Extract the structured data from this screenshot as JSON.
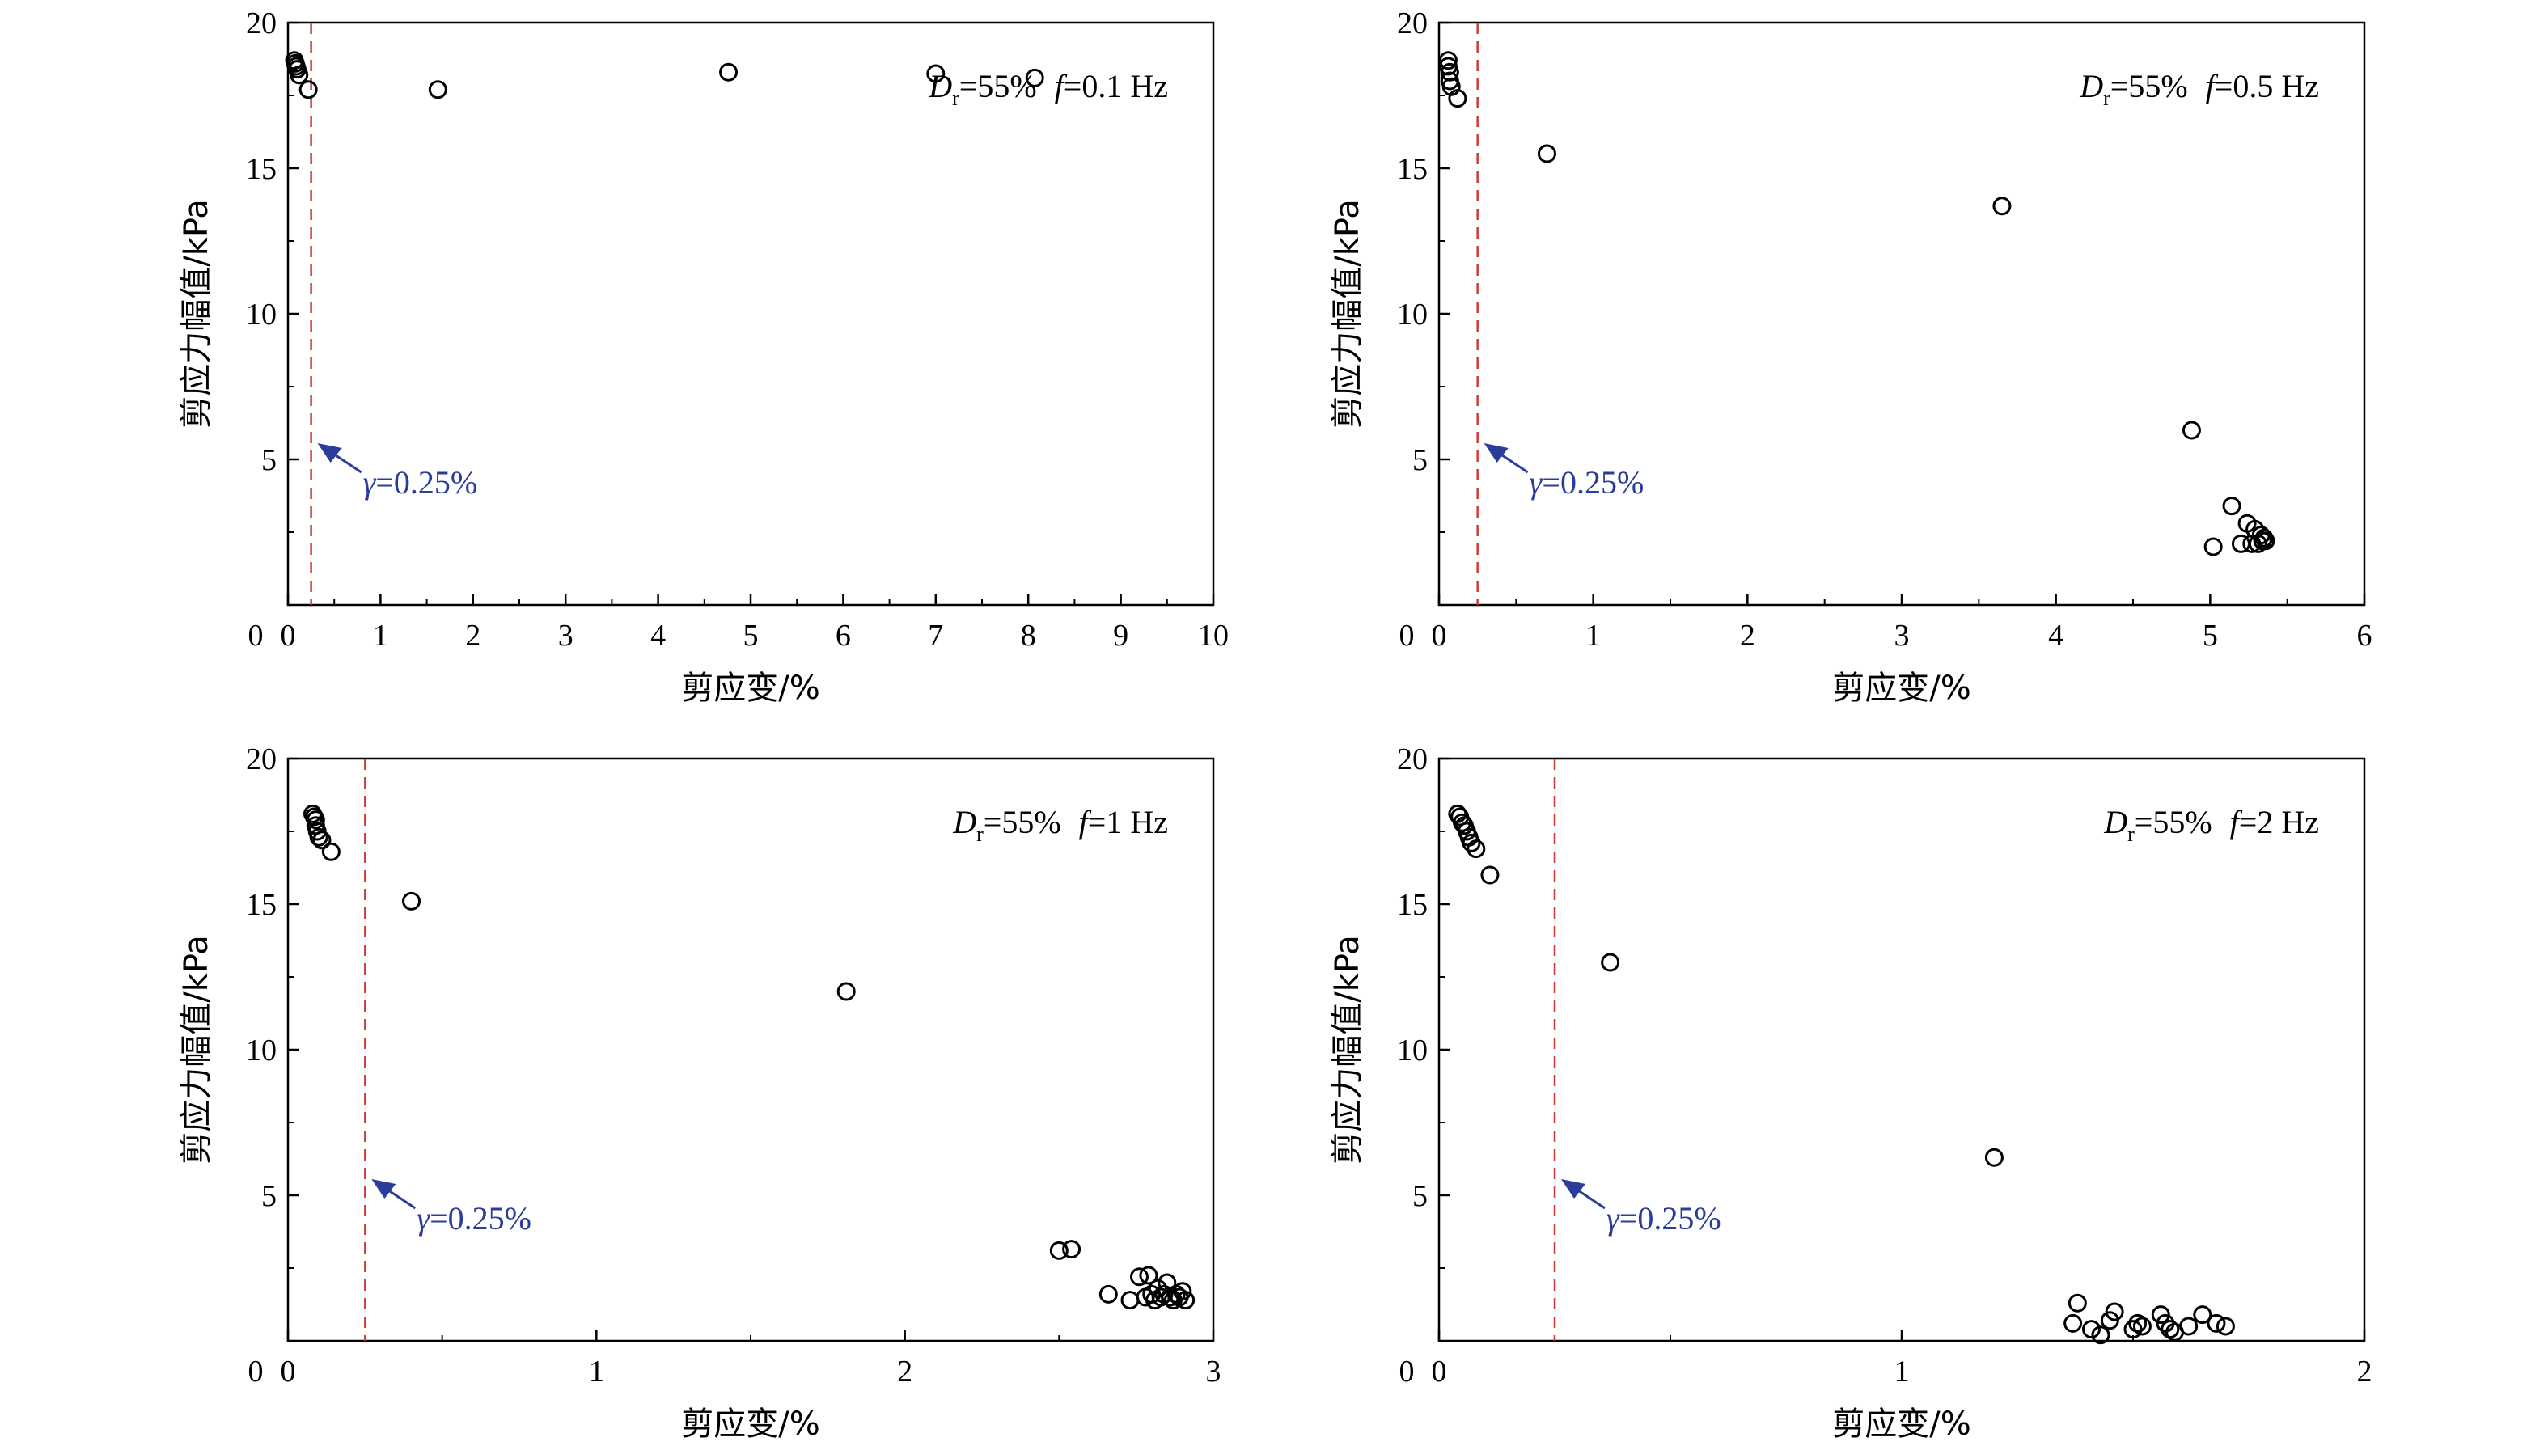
{
  "chart_data": [
    {
      "type": "scatter",
      "xlabel": "剪应变/%",
      "ylabel": "剪应力幅值/kPa",
      "xlim": [
        0,
        10
      ],
      "ylim": [
        0,
        20
      ],
      "xticks": [
        "0",
        "1",
        "2",
        "3",
        "4",
        "5",
        "6",
        "7",
        "8",
        "9",
        "10"
      ],
      "xtick_values": [
        0,
        1,
        2,
        3,
        4,
        5,
        6,
        7,
        8,
        9,
        10
      ],
      "yticks": [
        "5",
        "10",
        "15",
        "20"
      ],
      "ytick_values": [
        5,
        10,
        15,
        20
      ],
      "condition": {
        "d": "D",
        "sub": "r",
        "dr": "=55%",
        "f": "f",
        "freq": "=0.1 Hz"
      },
      "threshold": {
        "x": 0.25,
        "label_sym": "γ",
        "label_val": "=0.25%"
      },
      "x": [
        0.07,
        0.08,
        0.09,
        0.1,
        0.12,
        0.22,
        1.62,
        4.76,
        7.0,
        8.07
      ],
      "y": [
        18.7,
        18.6,
        18.5,
        18.4,
        18.2,
        17.7,
        17.7,
        18.3,
        18.25,
        18.1
      ]
    },
    {
      "type": "scatter",
      "xlabel": "剪应变/%",
      "ylabel": "剪应力幅值/kPa",
      "xlim": [
        0,
        6
      ],
      "ylim": [
        0,
        20
      ],
      "xticks": [
        "0",
        "1",
        "2",
        "3",
        "4",
        "5",
        "6"
      ],
      "xtick_values": [
        0,
        1,
        2,
        3,
        4,
        5,
        6
      ],
      "yticks": [
        "5",
        "10",
        "15",
        "20"
      ],
      "ytick_values": [
        5,
        10,
        15,
        20
      ],
      "condition": {
        "d": "D",
        "sub": "r",
        "dr": "=55%",
        "f": "f",
        "freq": "=0.5 Hz"
      },
      "threshold": {
        "x": 0.25,
        "label_sym": "γ",
        "label_val": "=0.25%"
      },
      "x": [
        0.06,
        0.06,
        0.07,
        0.07,
        0.08,
        0.12,
        0.7,
        3.65,
        4.88,
        5.02,
        5.14,
        5.2,
        5.24,
        5.27,
        5.29,
        5.31,
        5.33,
        5.34,
        5.35,
        5.36
      ],
      "y": [
        18.7,
        18.5,
        18.3,
        18.0,
        17.8,
        17.4,
        15.5,
        13.7,
        6.0,
        2.0,
        3.4,
        2.1,
        2.8,
        2.1,
        2.6,
        2.1,
        2.4,
        2.2,
        2.3,
        2.2
      ]
    },
    {
      "type": "scatter",
      "xlabel": "剪应变/%",
      "ylabel": "剪应力幅值/kPa",
      "xlim": [
        0,
        3
      ],
      "ylim": [
        0,
        20
      ],
      "xticks": [
        "0",
        "1",
        "2",
        "3"
      ],
      "xtick_values": [
        0,
        1,
        2,
        3
      ],
      "yticks": [
        "5",
        "10",
        "15",
        "20"
      ],
      "ytick_values": [
        5,
        10,
        15,
        20
      ],
      "condition": {
        "d": "D",
        "sub": "r",
        "dr": "=55%",
        "f": "f",
        "freq": "=1 Hz"
      },
      "threshold": {
        "x": 0.25,
        "label_sym": "γ",
        "label_val": "=0.25%"
      },
      "x": [
        0.08,
        0.085,
        0.09,
        0.09,
        0.095,
        0.1,
        0.11,
        0.14,
        0.4,
        1.81,
        2.5,
        2.54,
        2.66,
        2.73,
        2.76,
        2.78,
        2.79,
        2.8,
        2.81,
        2.82,
        2.83,
        2.84,
        2.85,
        2.86,
        2.87,
        2.88,
        2.89,
        2.9,
        2.91
      ],
      "y": [
        18.1,
        18.0,
        17.9,
        17.7,
        17.5,
        17.3,
        17.2,
        16.8,
        15.1,
        12.0,
        3.1,
        3.15,
        1.6,
        1.4,
        2.2,
        1.5,
        2.25,
        1.6,
        1.4,
        1.8,
        1.5,
        1.6,
        2.0,
        1.5,
        1.4,
        1.6,
        1.5,
        1.7,
        1.4
      ]
    },
    {
      "type": "scatter",
      "xlabel": "剪应变/%",
      "ylabel": "剪应力幅值/kPa",
      "xlim": [
        0,
        2
      ],
      "ylim": [
        0,
        20
      ],
      "xticks": [
        "0",
        "1",
        "2"
      ],
      "xtick_values": [
        0,
        1,
        2
      ],
      "yticks": [
        "5",
        "10",
        "15",
        "20"
      ],
      "ytick_values": [
        5,
        10,
        15,
        20
      ],
      "condition": {
        "d": "D",
        "sub": "r",
        "dr": "=55%",
        "f": "f",
        "freq": "=2 Hz"
      },
      "threshold": {
        "x": 0.25,
        "label_sym": "γ",
        "label_val": "=0.25%"
      },
      "x": [
        0.04,
        0.045,
        0.05,
        0.055,
        0.06,
        0.065,
        0.07,
        0.08,
        0.11,
        0.37,
        1.2,
        1.37,
        1.38,
        1.41,
        1.43,
        1.45,
        1.46,
        1.5,
        1.51,
        1.52,
        1.56,
        1.57,
        1.58,
        1.59,
        1.62,
        1.65,
        1.68,
        1.7
      ],
      "y": [
        18.1,
        18.0,
        17.8,
        17.7,
        17.5,
        17.3,
        17.1,
        16.9,
        16.0,
        13.0,
        6.3,
        0.6,
        1.3,
        0.4,
        0.2,
        0.7,
        1.0,
        0.4,
        0.6,
        0.5,
        0.9,
        0.6,
        0.4,
        0.3,
        0.5,
        0.9,
        0.6,
        0.5
      ]
    }
  ]
}
